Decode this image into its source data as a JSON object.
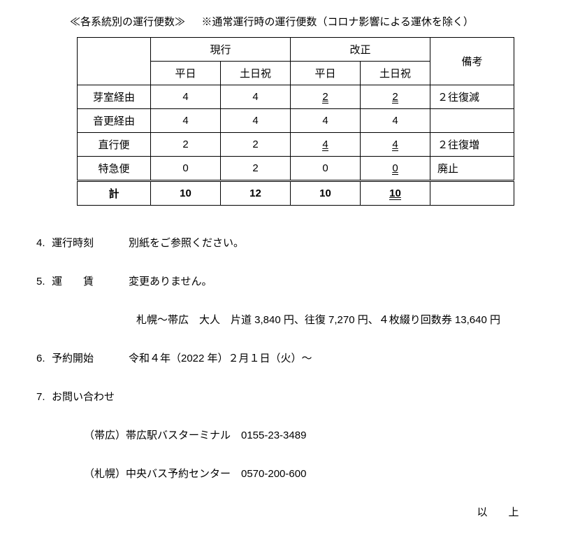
{
  "title": {
    "main": "≪各系統別の運行便数≫",
    "note": "※通常運行時の運行便数（コロナ影響による運休を除く）"
  },
  "table": {
    "headers": {
      "current": "現行",
      "revised": "改正",
      "weekday": "平日",
      "holiday": "土日祝",
      "remarks": "備考"
    },
    "rows": [
      {
        "route": "芽室経由",
        "cur_wd": "4",
        "cur_wd_u": false,
        "cur_hd": "4",
        "cur_hd_u": false,
        "new_wd": "2",
        "new_wd_u": true,
        "new_hd": "2",
        "new_hd_u": true,
        "note": "２往復減"
      },
      {
        "route": "音更経由",
        "cur_wd": "4",
        "cur_wd_u": false,
        "cur_hd": "4",
        "cur_hd_u": false,
        "new_wd": "4",
        "new_wd_u": false,
        "new_hd": "4",
        "new_hd_u": false,
        "note": ""
      },
      {
        "route": "直行便",
        "cur_wd": "2",
        "cur_wd_u": false,
        "cur_hd": "2",
        "cur_hd_u": false,
        "new_wd": "4",
        "new_wd_u": true,
        "new_hd": "4",
        "new_hd_u": true,
        "note": "２往復増"
      },
      {
        "route": "特急便",
        "cur_wd": "0",
        "cur_wd_u": false,
        "cur_hd": "2",
        "cur_hd_u": false,
        "new_wd": "0",
        "new_wd_u": false,
        "new_hd": "0",
        "new_hd_u": true,
        "note": "廃止"
      }
    ],
    "total": {
      "label": "計",
      "cur_wd": "10",
      "cur_hd": "12",
      "new_wd": "10",
      "new_hd": "10",
      "new_hd_u": true,
      "note": ""
    }
  },
  "items": {
    "i4": {
      "num": "4.",
      "label": "運行時刻",
      "content": "別紙をご参照ください。"
    },
    "i5": {
      "num": "5.",
      "label": "運　賃",
      "content": "変更ありません。"
    },
    "fare_detail": "札幌～帯広　大人　片道 3,840 円、往復 7,270 円、４枚綴り回数券 13,640 円",
    "i6": {
      "num": "6.",
      "label": "予約開始",
      "content": "令和４年（2022 年）２月１日（火）～"
    },
    "i7": {
      "num": "7.",
      "label": "お問い合わせ",
      "content": ""
    },
    "contact1": "（帯広）帯広駅バスターミナル　0155-23-3489",
    "contact2": "（札幌）中央バス予約センター　0570-200-600"
  },
  "closing": "以　上"
}
